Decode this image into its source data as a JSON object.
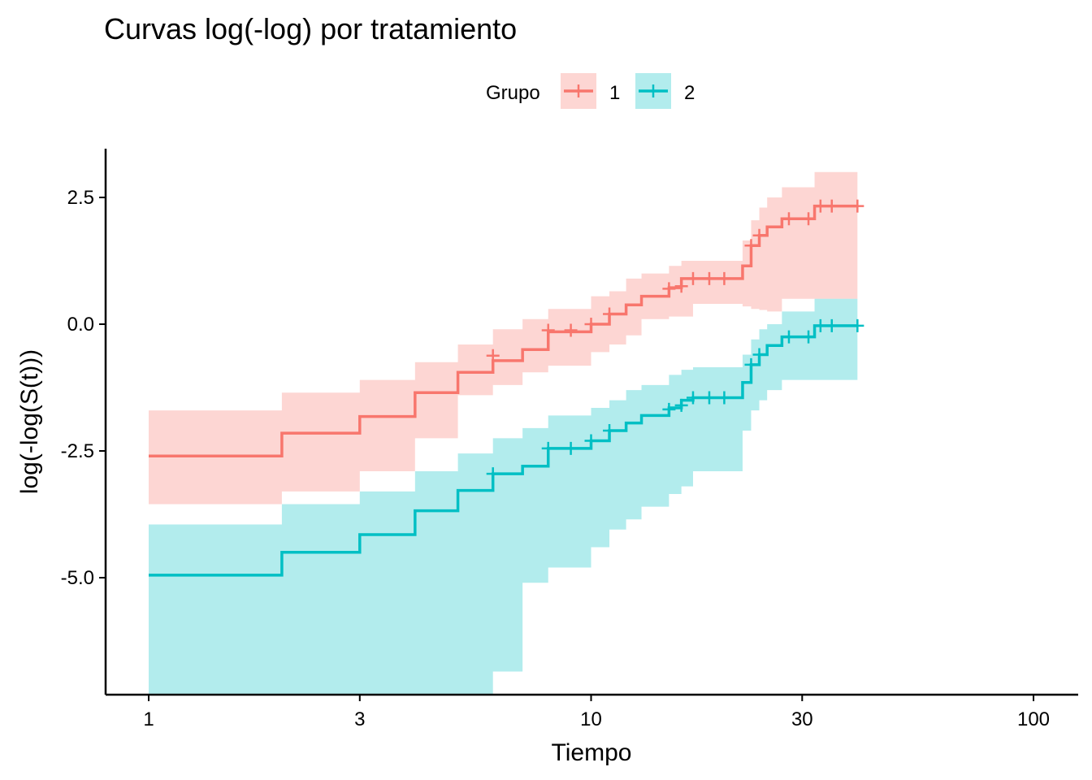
{
  "chart_data": {
    "type": "line",
    "title": "Curvas log(-log) por tratamiento",
    "xlabel": "Tiempo",
    "ylabel": "log(-log(S(t)))",
    "x_scale": "log",
    "xlim": [
      0.8,
      120
    ],
    "ylim": [
      -7.3,
      3.5
    ],
    "x_ticks": [
      1,
      3,
      10,
      30,
      100
    ],
    "x_tick_labels": [
      "1",
      "3",
      "10",
      "30",
      "100"
    ],
    "y_ticks": [
      2.5,
      0.0,
      -2.5,
      -5.0
    ],
    "y_tick_labels": [
      "2.5",
      "0.0",
      "-2.5",
      "-5.0"
    ],
    "grid": false,
    "legend": {
      "title": "Grupo",
      "position": "top"
    },
    "series": [
      {
        "name": "1",
        "color": "#F8766D",
        "ribbon_color": "#F8766D",
        "step_x": [
          1,
          2,
          3,
          4,
          5,
          6,
          7,
          8,
          10,
          11,
          12,
          13,
          15,
          16,
          17,
          22,
          23,
          24,
          25,
          27,
          32,
          40
        ],
        "y": [
          -2.6,
          -2.15,
          -1.82,
          -1.35,
          -0.95,
          -0.72,
          -0.5,
          -0.15,
          0.0,
          0.2,
          0.38,
          0.55,
          0.72,
          0.9,
          0.9,
          1.15,
          1.55,
          1.75,
          1.92,
          2.08,
          2.33,
          2.33
        ],
        "lower": [
          -3.95,
          -3.55,
          -3.3,
          -2.9,
          -2.25,
          -1.4,
          -1.2,
          -0.95,
          -0.82,
          -0.55,
          -0.4,
          -0.22,
          0.1,
          0.15,
          0.15,
          0.4,
          0.35,
          0.3,
          0.28,
          0.25,
          0.5,
          0.5
        ],
        "upper": [
          -1.7,
          -1.35,
          -1.1,
          -0.75,
          -0.4,
          -0.1,
          0.1,
          0.3,
          0.55,
          0.65,
          0.9,
          1.0,
          1.15,
          1.25,
          1.25,
          1.65,
          2.05,
          2.3,
          2.5,
          2.7,
          3.0,
          3.0
        ],
        "censored_x": [
          6,
          8,
          9,
          10,
          11,
          15,
          16,
          17,
          18.5,
          20,
          23,
          24,
          28,
          31,
          33,
          35,
          40
        ],
        "censored_y": [
          -0.62,
          -0.12,
          -0.12,
          0.0,
          0.2,
          0.7,
          0.75,
          0.9,
          0.9,
          0.9,
          1.55,
          1.75,
          2.08,
          2.08,
          2.33,
          2.33,
          2.33
        ]
      },
      {
        "name": "2",
        "color": "#00BFC4",
        "ribbon_color": "#00BFC4",
        "step_x": [
          1,
          2,
          3,
          4,
          5,
          6,
          7,
          8,
          10,
          11,
          12,
          13,
          15,
          16,
          17,
          22,
          23,
          24,
          25,
          27,
          32,
          40
        ],
        "y": [
          -4.95,
          -4.5,
          -4.15,
          -3.68,
          -3.28,
          -2.95,
          -2.8,
          -2.45,
          -2.3,
          -2.1,
          -1.95,
          -1.8,
          -1.65,
          -1.5,
          -1.45,
          -1.15,
          -0.8,
          -0.6,
          -0.42,
          -0.25,
          -0.03,
          -0.03
        ],
        "lower": [
          -7.3,
          -7.3,
          -7.3,
          -7.3,
          -7.3,
          -7.3,
          -6.85,
          -5.1,
          -4.8,
          -4.4,
          -4.05,
          -3.85,
          -3.6,
          -3.35,
          -3.2,
          -2.9,
          -2.1,
          -1.7,
          -1.5,
          -1.3,
          -1.1,
          -1.1
        ],
        "upper": [
          -3.95,
          -3.55,
          -3.3,
          -2.9,
          -2.55,
          -2.25,
          -2.05,
          -1.8,
          -1.65,
          -1.5,
          -1.3,
          -1.2,
          -1.0,
          -0.9,
          -0.85,
          -0.6,
          -0.3,
          -0.1,
          0.0,
          0.25,
          0.5,
          0.5
        ],
        "censored_x": [
          6,
          8,
          9,
          10,
          11,
          15,
          16,
          17,
          18.5,
          20,
          23,
          24,
          28,
          31,
          33,
          35,
          40
        ],
        "censored_y": [
          -2.95,
          -2.45,
          -2.45,
          -2.3,
          -2.1,
          -1.68,
          -1.6,
          -1.45,
          -1.45,
          -1.45,
          -0.8,
          -0.6,
          -0.25,
          -0.25,
          -0.03,
          -0.03,
          -0.03
        ]
      }
    ]
  }
}
